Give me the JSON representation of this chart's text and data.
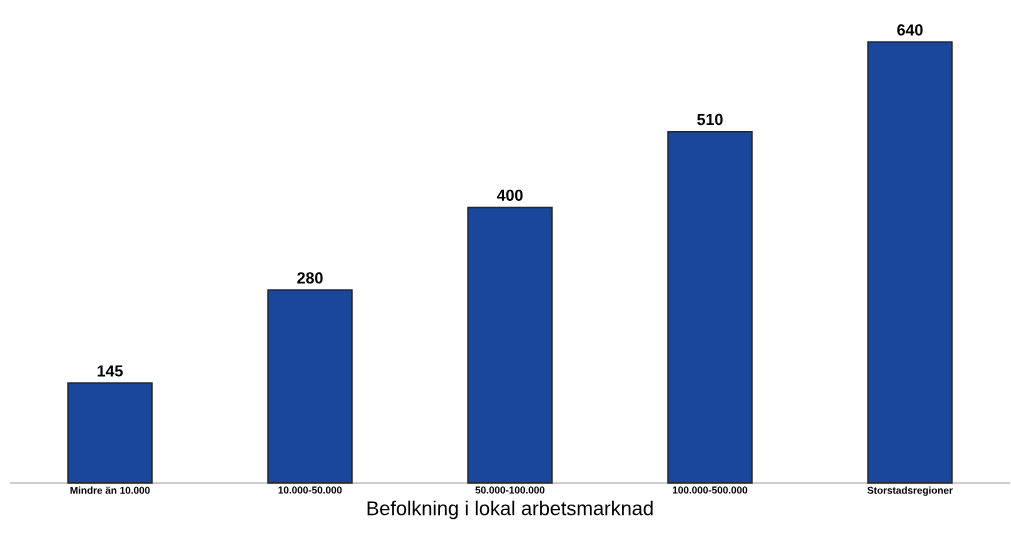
{
  "chart_data": {
    "type": "bar",
    "xlabel": "Befolkning i lokal arbetsmarknad",
    "categories": [
      "Mindre än 10.000",
      "10.000-50.000",
      "50.000-100.000",
      "100.000-500.000",
      "Storstadsregioner"
    ],
    "values": [
      145,
      280,
      400,
      510,
      640
    ],
    "color": "#1a469b",
    "data_labels": true,
    "tick_labels": "x"
  }
}
